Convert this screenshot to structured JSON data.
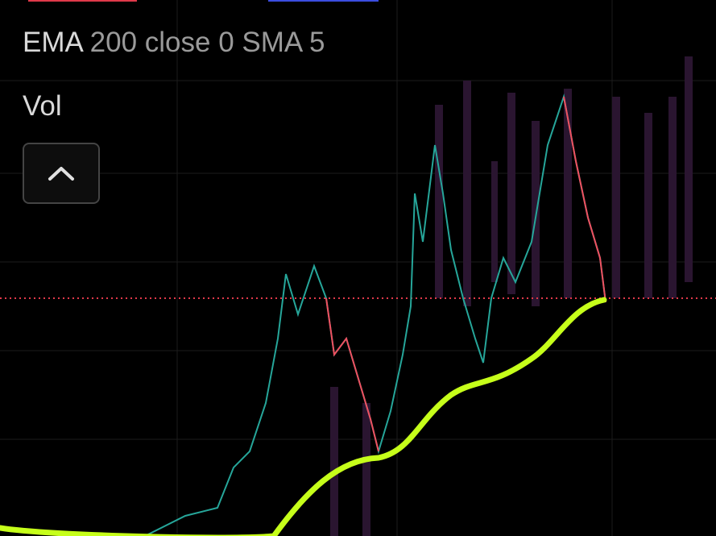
{
  "legend": {
    "indicator": "EMA",
    "params": "200 close 0 SMA 5",
    "volume": "Vol"
  }
}
